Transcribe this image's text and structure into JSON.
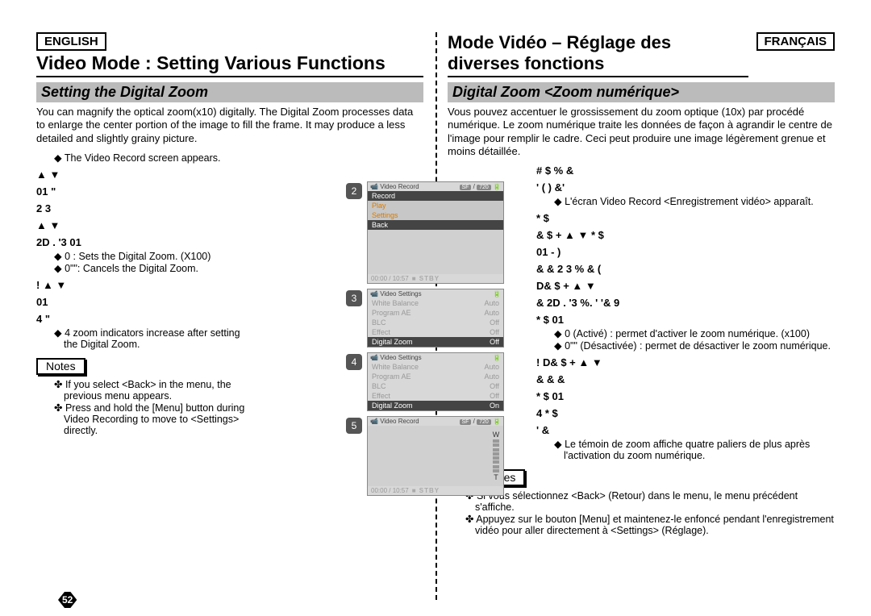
{
  "left": {
    "lang": "ENGLISH",
    "title": "Video Mode : Setting Various Functions",
    "subheader": "Setting the Digital Zoom",
    "intro": "You can magnify the optical zoom(x10) digitally. The Digital Zoom processes data to enlarge the center portion of the image to fill the frame. It may produce a less detailed and slightly grainy picture.",
    "bullet1": "The Video Record screen appears.",
    "step2a": "      ▲  ▼",
    "step2b": "            01       \"",
    "step2c": "2        3",
    "step3a": "                   ▲  ▼",
    "step3b": "2D       . '3              01",
    "bullet3a": "0      : Sets the Digital Zoom. (X100)",
    "bullet3b": "0\"\": Cancels the Digital Zoom.",
    "step4a": "!                   ▲  ▼",
    "step4b": "                             01",
    "step4c": "4                            \"",
    "bullet4": "4 zoom indicators increase after setting the Digital Zoom.",
    "notesLabel": "Notes",
    "note1": "If you select <Back> in the menu, the previous menu appears.",
    "note2": "Press and hold the [Menu] button during Video Recording to move to <Settings> directly.",
    "pageNum": "52"
  },
  "right": {
    "lang": "FRANÇAIS",
    "title": "Mode Vidéo – Réglage des diverses fonctions",
    "subheader": "Digital Zoom <Zoom numérique>",
    "intro": "Vous pouvez accentuer le grossissement du zoom optique (10x) par procédé numérique. Le zoom numérique traite les données de façon à agrandir le centre de l'image pour remplir le cadre. Ceci peut produire une image légèrement grenue et moins détaillée.",
    "step1a": "      #    $              %  &",
    "step1b": "'  (  )                &'",
    "bullet1": "L'écran Video Record <Enregistrement vidéo> apparaît.",
    "step2a": "           *  $",
    "step2b": "&     $  +                 ▲  ▼       *  $",
    "step2c": "            01    -  )",
    "step2d": "&        &  2       3  %  &        (",
    "step3a": "D&     $  +                 ▲  ▼",
    "step3b": "&         2D       . '3 %.  '  '&  9",
    "step3c": "         *  $         01",
    "bullet3a": "0      (Activé) : permet d'activer le zoom numérique. (x100)",
    "bullet3b": "0\"\" (Désactivée) : permet de désactiver le zoom numérique.",
    "step4a": "!     D&     $  +                 ▲  ▼",
    "step4b": "&             &          &",
    "step4c": "        *  $         01",
    "step4d": "4       *  $",
    "step4e": "       '         &",
    "bullet4": "Le témoin de zoom affiche quatre paliers de plus après l'activation du zoom numérique.",
    "notesLabel": "Remarques",
    "note1": "Si vous sélectionnez <Back> (Retour) dans le menu, le menu précédent s'affiche.",
    "note2": "Appuyez sur le bouton [Menu] et maintenez-le enfoncé pendant l'enregistrement vidéo pour aller directement à <Settings> (Réglage)."
  },
  "screens": {
    "s2": {
      "num": "2",
      "title": "Video Record",
      "badges": [
        "SF",
        "720"
      ],
      "rows": [
        {
          "label": "Record",
          "sel": true
        },
        {
          "label": "Play",
          "sel": false,
          "orange": true
        },
        {
          "label": "Settings",
          "sel": false,
          "orange": true
        },
        {
          "label": "Back",
          "sel": true
        }
      ],
      "footer_time": "00:00 / 10:57",
      "footer_stby": "■ STBY"
    },
    "s3": {
      "num": "3",
      "title": "Video Settings",
      "rows": [
        {
          "l": "White Balance",
          "r": "Auto"
        },
        {
          "l": "Program AE",
          "r": "Auto"
        },
        {
          "l": "BLC",
          "r": "Off"
        },
        {
          "l": "Effect",
          "r": "Off"
        },
        {
          "l": "Digital Zoom",
          "r": "Off",
          "hl": true
        }
      ]
    },
    "s4": {
      "num": "4",
      "title": "Video Settings",
      "rows": [
        {
          "l": "White Balance",
          "r": "Auto"
        },
        {
          "l": "Program AE",
          "r": "Auto"
        },
        {
          "l": "BLC",
          "r": "Off"
        },
        {
          "l": "Effect",
          "r": "Off"
        },
        {
          "l": "Digital Zoom",
          "r": "On",
          "hl": true
        }
      ]
    },
    "s5": {
      "num": "5",
      "title": "Video Record",
      "badges": [
        "SF",
        "720"
      ],
      "footer_time": "00:00 / 10:57",
      "footer_stby": "■ STBY",
      "w": "W",
      "t": "T"
    }
  }
}
